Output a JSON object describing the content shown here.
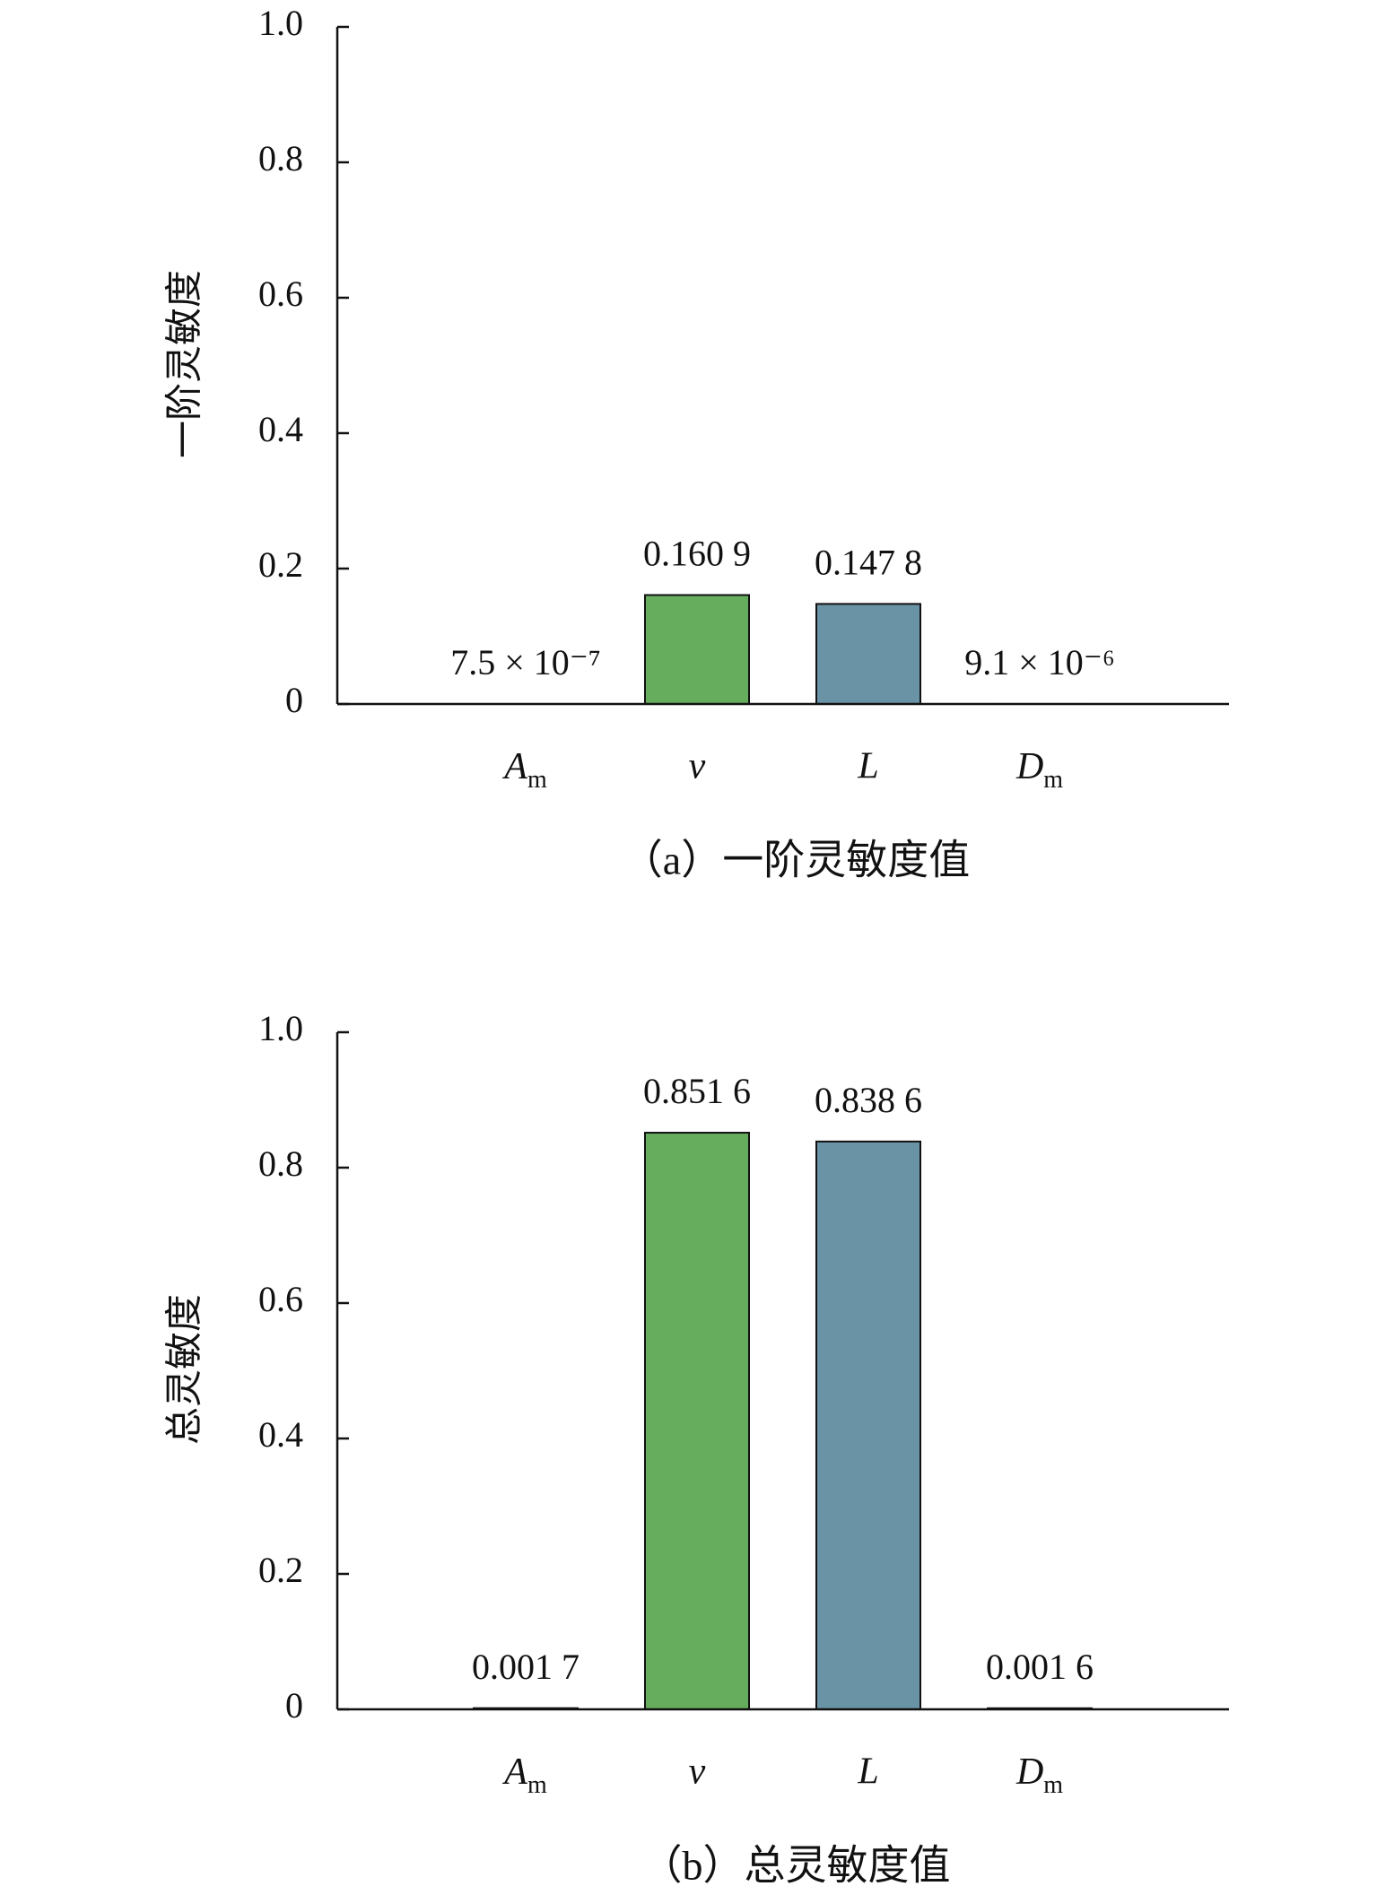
{
  "chart_data": [
    {
      "type": "bar",
      "ylabel": "一阶灵敏度",
      "caption": "（a）一阶灵敏度值",
      "categories": [
        "Am",
        "v",
        "L",
        "Dm"
      ],
      "values": [
        7.5e-07,
        0.1609,
        0.1478,
        9.1e-06
      ],
      "value_labels": [
        "7.5 × 10⁻⁷",
        "0.160 9",
        "0.147 8",
        "9.1 × 10⁻⁶"
      ],
      "colors": [
        "#555555",
        "#66ad5e",
        "#6a93a6",
        "#555555"
      ],
      "ylim": [
        0,
        1
      ],
      "yticks": [
        0,
        0.2,
        0.4,
        0.6,
        0.8,
        {
          "value": 1,
          "label": "1.0"
        }
      ]
    },
    {
      "type": "bar",
      "ylabel": "总灵敏度",
      "caption": "（b）总灵敏度值",
      "categories": [
        "Am",
        "v",
        "L",
        "Dm"
      ],
      "values": [
        0.0017,
        0.8516,
        0.8386,
        0.0016
      ],
      "value_labels": [
        "0.001 7",
        "0.851 6",
        "0.838 6",
        "0.001 6"
      ],
      "colors": [
        "#555555",
        "#66ad5e",
        "#6a93a6",
        "#555555"
      ],
      "ylim": [
        0,
        1
      ],
      "yticks": [
        0,
        0.2,
        0.4,
        0.6,
        0.8,
        {
          "value": 1,
          "label": "1.0"
        }
      ]
    }
  ]
}
